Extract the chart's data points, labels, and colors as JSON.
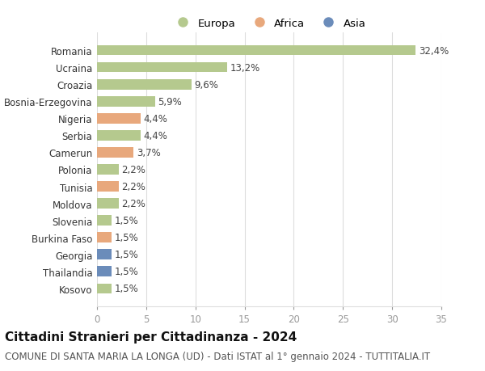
{
  "categories": [
    "Romania",
    "Ucraina",
    "Croazia",
    "Bosnia-Erzegovina",
    "Nigeria",
    "Serbia",
    "Camerun",
    "Polonia",
    "Tunisia",
    "Moldova",
    "Slovenia",
    "Burkina Faso",
    "Georgia",
    "Thailandia",
    "Kosovo"
  ],
  "values": [
    32.4,
    13.2,
    9.6,
    5.9,
    4.4,
    4.4,
    3.7,
    2.2,
    2.2,
    2.2,
    1.5,
    1.5,
    1.5,
    1.5,
    1.5
  ],
  "labels": [
    "32,4%",
    "13,2%",
    "9,6%",
    "5,9%",
    "4,4%",
    "4,4%",
    "3,7%",
    "2,2%",
    "2,2%",
    "2,2%",
    "1,5%",
    "1,5%",
    "1,5%",
    "1,5%",
    "1,5%"
  ],
  "continent": [
    "Europa",
    "Europa",
    "Europa",
    "Europa",
    "Africa",
    "Europa",
    "Africa",
    "Europa",
    "Africa",
    "Europa",
    "Europa",
    "Africa",
    "Asia",
    "Asia",
    "Europa"
  ],
  "colors": {
    "Europa": "#b5c98e",
    "Africa": "#e8a87c",
    "Asia": "#6b8cba"
  },
  "xlim": [
    0,
    35
  ],
  "xticks": [
    0,
    5,
    10,
    15,
    20,
    25,
    30,
    35
  ],
  "title": "Cittadini Stranieri per Cittadinanza - 2024",
  "subtitle": "COMUNE DI SANTA MARIA LA LONGA (UD) - Dati ISTAT al 1° gennaio 2024 - TUTTITALIA.IT",
  "background_color": "#ffffff",
  "grid_color": "#dddddd",
  "bar_height": 0.6,
  "title_fontsize": 11,
  "subtitle_fontsize": 8.5,
  "tick_fontsize": 8.5,
  "label_fontsize": 8.5,
  "legend_fontsize": 9.5
}
